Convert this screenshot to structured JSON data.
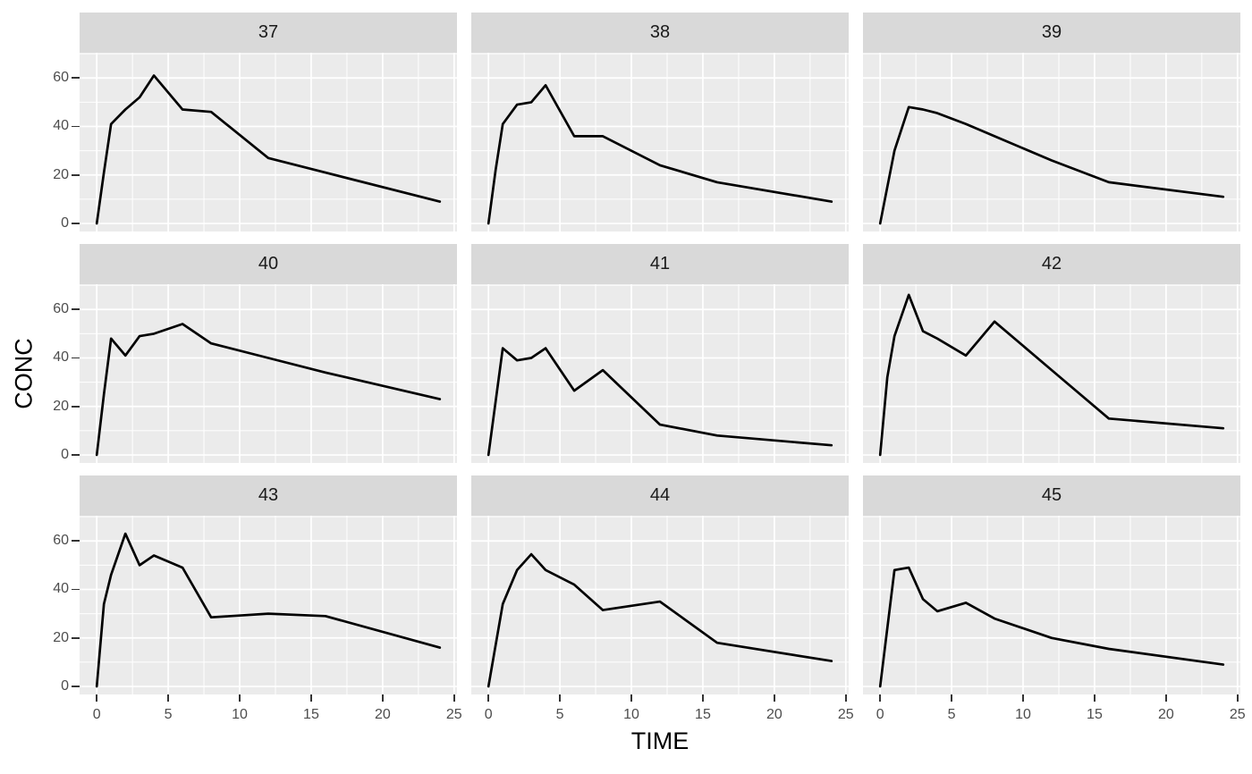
{
  "chart_data": {
    "type": "line",
    "title": "",
    "xlabel": "TIME",
    "ylabel": "CONC",
    "legend": "none",
    "grid": "white major and minor gridlines on grey panels",
    "facet_layout": {
      "rows": 3,
      "cols": 3,
      "shared_axes": true
    },
    "xlim": [
      -1.2,
      25.2
    ],
    "ylim": [
      -3.3,
      70.4
    ],
    "x_ticks": [
      0,
      5,
      10,
      15,
      20,
      25
    ],
    "y_ticks": [
      0,
      20,
      40,
      60
    ],
    "x_minor_ticks": [
      2.5,
      7.5,
      12.5,
      17.5,
      22.5
    ],
    "y_minor_ticks": [
      10,
      30,
      50,
      70
    ],
    "x": [
      0,
      0.5,
      1,
      2,
      3,
      4,
      6,
      8,
      12,
      16,
      24
    ],
    "facets": [
      {
        "label": "37",
        "conc": [
          0,
          21,
          41,
          47,
          52,
          61,
          47,
          46,
          27,
          21,
          9
        ]
      },
      {
        "label": "38",
        "conc": [
          0,
          22,
          41,
          49,
          50,
          57,
          36,
          36,
          24,
          17,
          9
        ]
      },
      {
        "label": "39",
        "conc": [
          0,
          15,
          30,
          48,
          47,
          45.5,
          41,
          36,
          26,
          17,
          11
        ]
      },
      {
        "label": "40",
        "conc": [
          0,
          25,
          48,
          41,
          49,
          50,
          54,
          46,
          40,
          34,
          23
        ]
      },
      {
        "label": "41",
        "conc": [
          0,
          22,
          44,
          39,
          40,
          44,
          26.5,
          35,
          12.5,
          8,
          4
        ]
      },
      {
        "label": "42",
        "conc": [
          0,
          32,
          49,
          66,
          51,
          48,
          41,
          55,
          35,
          15,
          11
        ]
      },
      {
        "label": "43",
        "conc": [
          0,
          34,
          46,
          63,
          50,
          54,
          49,
          28.5,
          30,
          29,
          16
        ]
      },
      {
        "label": "44",
        "conc": [
          0,
          17,
          34,
          48,
          54.5,
          48,
          42,
          31.5,
          35,
          18,
          10.5
        ]
      },
      {
        "label": "45",
        "conc": [
          0,
          24,
          48,
          49,
          36,
          31,
          34.5,
          28,
          20,
          15.5,
          9
        ]
      }
    ],
    "colors": {
      "line": "#000000",
      "panel_background": "#EBEBEB",
      "strip_background": "#D9D9D9",
      "gridline": "#FFFFFF",
      "axis_text": "#4D4D4D",
      "strip_text": "#1A1A1A",
      "axis_title": "#000000",
      "tick_mark": "#333333"
    }
  }
}
